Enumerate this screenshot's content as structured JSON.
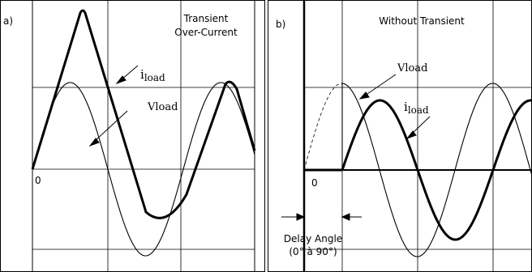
{
  "panel_a": {
    "letter": "a)",
    "title_line1": "Transient",
    "title_line2": "Over-Current",
    "current_label_main": "i",
    "current_label_sub": "load",
    "voltage_label": "Vload",
    "origin_label": "0"
  },
  "panel_b": {
    "letter": "b)",
    "title": "Without Transient",
    "voltage_label": "Vload",
    "current_label_main": "i",
    "current_label_sub": "load",
    "origin_label": "0",
    "delay_line1": "Delay Angle",
    "delay_line2": "(0° à 90°)"
  }
}
